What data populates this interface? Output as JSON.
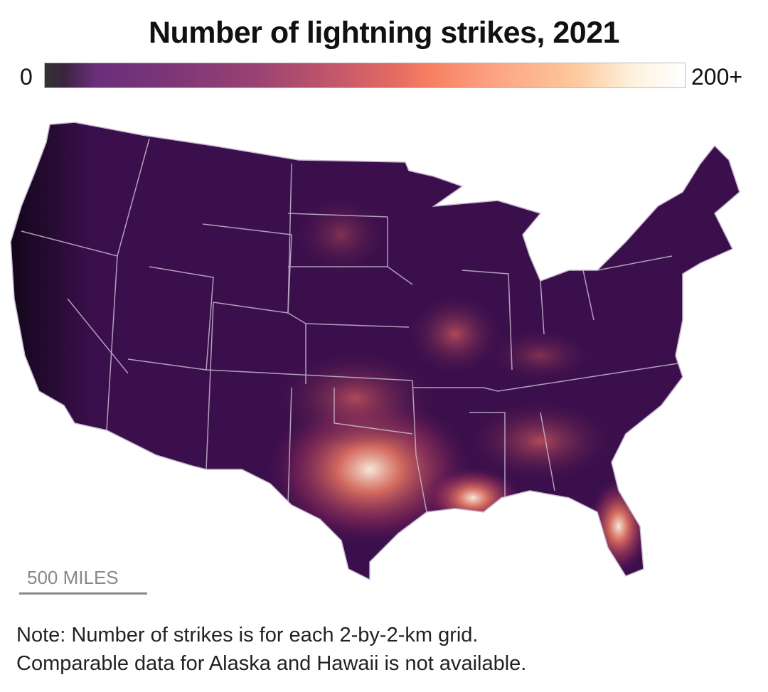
{
  "title": "Number of lightning strikes, 2021",
  "legend": {
    "min_label": "0",
    "max_label": "200+",
    "colors": [
      "#333333",
      "#6a2f7a",
      "#c2566b",
      "#f87f62",
      "#fdc99c",
      "#ffffff"
    ]
  },
  "map": {
    "region": "Contiguous United States",
    "base_color": "#3b0f4c",
    "border_color": "#c9b8d0",
    "hotspots": [
      "Texas",
      "Louisiana",
      "Florida",
      "Missouri",
      "Oklahoma",
      "Gulf Coast"
    ]
  },
  "scale": {
    "label": "500 MILES"
  },
  "note": {
    "line1": "Note: Number of strikes is for each 2-by-2-km grid.",
    "line2": "Comparable data for Alaska and Hawaii is not available."
  }
}
